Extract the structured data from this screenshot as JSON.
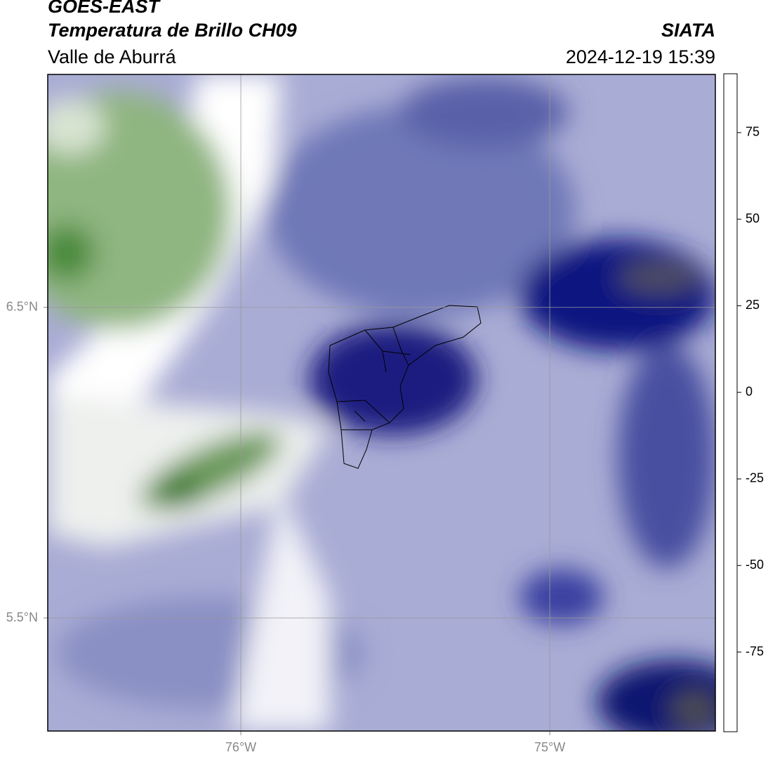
{
  "header": {
    "satellite": "GOES-EAST",
    "product": "Temperatura de Brillo CH09",
    "region": "Valle de Aburrá",
    "source": "SIATA",
    "datetime": "2024-12-19 15:39"
  },
  "map": {
    "xlim": [
      -76.625,
      -74.464
    ],
    "ylim": [
      5.136,
      7.25
    ],
    "xticks": [
      {
        "value": -76,
        "label": "76°W"
      },
      {
        "value": -75,
        "label": "75°W"
      }
    ],
    "yticks": [
      {
        "value": 6.5,
        "label": "6.5°N"
      },
      {
        "value": 5.5,
        "label": "5.5°N"
      }
    ],
    "grid": true
  },
  "colorbar": {
    "range": [
      -98,
      92
    ],
    "ticks": [
      75,
      50,
      25,
      0,
      -25,
      -50,
      -75
    ],
    "stops": [
      {
        "value": -98,
        "color": "#ffffff"
      },
      {
        "value": -93,
        "color": "#ffffff"
      },
      {
        "value": -93,
        "color": "#00e5dc"
      },
      {
        "value": -80,
        "color": "#2aa070"
      },
      {
        "value": -65,
        "color": "#3a8a2a"
      },
      {
        "value": -58,
        "color": "#8aaa70"
      },
      {
        "value": -54,
        "color": "#e0e8e0"
      },
      {
        "value": -50,
        "color": "#ffffff"
      },
      {
        "value": -45,
        "color": "#c8c8e0"
      },
      {
        "value": -35,
        "color": "#6870b0"
      },
      {
        "value": -28,
        "color": "#101080"
      },
      {
        "value": -25,
        "color": "#000060"
      },
      {
        "value": -22,
        "color": "#303030"
      },
      {
        "value": -18,
        "color": "#909030"
      },
      {
        "value": -14,
        "color": "#e0e000"
      },
      {
        "value": -5,
        "color": "#ff9000"
      },
      {
        "value": 8,
        "color": "#ff1000"
      },
      {
        "value": 8,
        "color": "#000000"
      },
      {
        "value": 92,
        "color": "#000000"
      }
    ]
  }
}
